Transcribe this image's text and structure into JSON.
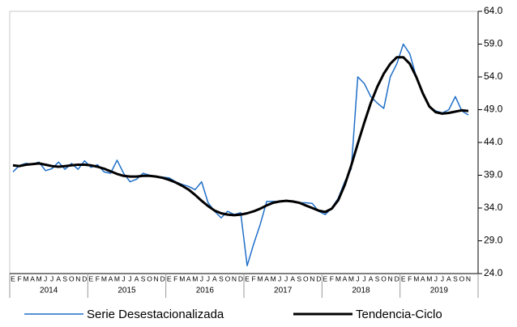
{
  "chart_data": {
    "type": "line",
    "categories": [
      "E",
      "F",
      "M",
      "A",
      "M",
      "J",
      "J",
      "A",
      "S",
      "O",
      "N",
      "D",
      "E",
      "F",
      "M",
      "A",
      "M",
      "J",
      "J",
      "A",
      "S",
      "O",
      "N",
      "D",
      "E",
      "F",
      "M",
      "A",
      "M",
      "J",
      "J",
      "A",
      "S",
      "O",
      "N",
      "D",
      "E",
      "F",
      "M",
      "A",
      "M",
      "J",
      "J",
      "A",
      "S",
      "O",
      "N",
      "D",
      "E",
      "F",
      "M",
      "A",
      "M",
      "J",
      "J",
      "A",
      "S",
      "O",
      "N",
      "D",
      "E",
      "F",
      "M",
      "A",
      "M",
      "J",
      "J",
      "A",
      "S",
      "O",
      "N",
      null
    ],
    "years": [
      "2014",
      "2015",
      "2016",
      "2017",
      "2018",
      "2019"
    ],
    "series": [
      {
        "name": "Serie Desestacionalizada",
        "color": "#1f6fc8",
        "values": [
          39.5,
          40.5,
          40.8,
          40.7,
          41.0,
          39.7,
          40.0,
          41.0,
          39.9,
          40.8,
          39.9,
          41.2,
          40.2,
          40.6,
          39.5,
          39.3,
          41.3,
          39.3,
          38.0,
          38.4,
          39.3,
          39.0,
          38.8,
          38.7,
          38.6,
          38.0,
          37.6,
          37.3,
          36.8,
          38.0,
          34.8,
          33.5,
          32.5,
          33.5,
          33.0,
          33.3,
          25.2,
          28.5,
          31.5,
          35.0,
          35.0,
          35.0,
          35.2,
          35.0,
          34.8,
          34.8,
          34.7,
          33.5,
          33.0,
          34.0,
          35.5,
          38.0,
          40.0,
          54.0,
          53.0,
          51.0,
          50.0,
          49.2,
          54.0,
          56.0,
          59.0,
          57.5,
          54.0,
          51.5,
          49.5,
          48.8,
          48.5,
          49.0,
          51.0,
          48.8,
          48.2,
          null
        ]
      },
      {
        "name": "Tendencia-Ciclo",
        "color": "#000000",
        "values": [
          40.5,
          40.4,
          40.6,
          40.7,
          40.8,
          40.6,
          40.4,
          40.3,
          40.4,
          40.5,
          40.6,
          40.6,
          40.5,
          40.3,
          40.0,
          39.6,
          39.2,
          38.9,
          38.8,
          38.8,
          38.9,
          38.9,
          38.8,
          38.6,
          38.3,
          37.9,
          37.4,
          36.8,
          36.0,
          35.1,
          34.3,
          33.6,
          33.2,
          33.0,
          32.9,
          33.0,
          33.2,
          33.5,
          33.9,
          34.4,
          34.8,
          35.0,
          35.1,
          35.0,
          34.8,
          34.4,
          34.0,
          33.6,
          33.4,
          33.9,
          35.2,
          37.5,
          40.5,
          43.8,
          47.0,
          50.0,
          52.5,
          54.5,
          56.0,
          57.0,
          57.0,
          56.0,
          54.0,
          51.5,
          49.5,
          48.6,
          48.4,
          48.5,
          48.7,
          48.9,
          48.8,
          null
        ]
      }
    ],
    "ylim": [
      24,
      64
    ],
    "yticks": [
      {
        "value": 24,
        "label": "24.0"
      },
      {
        "value": 29,
        "label": "29.0"
      },
      {
        "value": 34,
        "label": "34.0"
      },
      {
        "value": 39,
        "label": "39.0"
      },
      {
        "value": 44,
        "label": "44.0"
      },
      {
        "value": 49,
        "label": "49.0"
      },
      {
        "value": 54,
        "label": "54.0"
      },
      {
        "value": 59,
        "label": "59.0"
      },
      {
        "value": 64,
        "label": "64.0"
      }
    ],
    "grid": false,
    "legend": "bottom"
  }
}
